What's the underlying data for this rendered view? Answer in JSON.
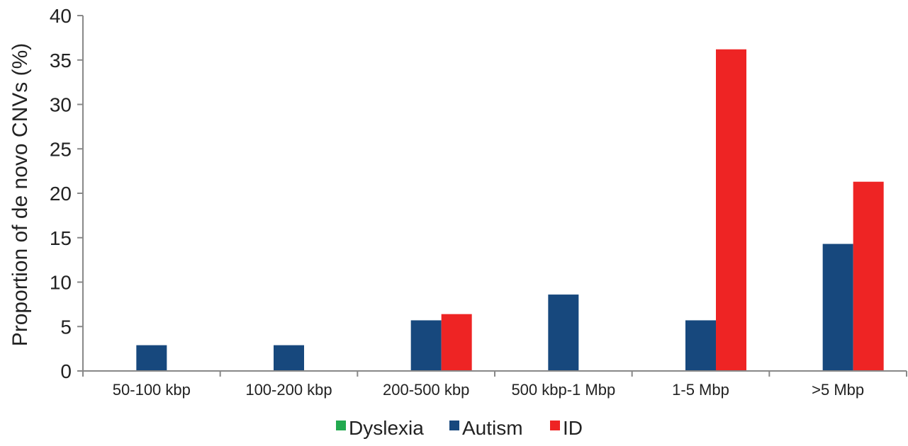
{
  "chart_data": {
    "type": "bar",
    "title": "",
    "xlabel": "",
    "ylabel": "Proportion of de novo CNVs (%)",
    "ylim": [
      0,
      40
    ],
    "yticks": [
      0,
      5,
      10,
      15,
      20,
      25,
      30,
      35,
      40
    ],
    "categories": [
      "50-100 kbp",
      "100-200 kbp",
      "200-500 kbp",
      "500 kbp-1 Mbp",
      "1-5 Mbp",
      ">5 Mbp"
    ],
    "series": [
      {
        "name": "Dyslexia",
        "color": "#22a94f",
        "values": [
          0,
          0,
          0,
          0,
          0,
          0
        ]
      },
      {
        "name": "Autism",
        "color": "#17487d",
        "values": [
          2.9,
          2.9,
          5.7,
          8.6,
          5.7,
          14.3
        ]
      },
      {
        "name": "ID",
        "color": "#ee2424",
        "values": [
          0,
          0,
          6.4,
          0,
          36.2,
          21.3
        ]
      }
    ],
    "legend_position": "bottom-center",
    "grid": false
  }
}
